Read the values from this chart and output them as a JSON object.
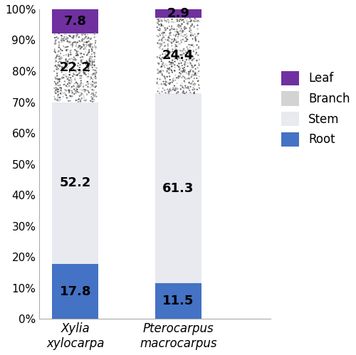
{
  "species": [
    "Xylia\nxylocarpa",
    "Pterocarpus\nmacrocarpus"
  ],
  "root": [
    17.8,
    11.5
  ],
  "stem": [
    52.2,
    61.3
  ],
  "branch": [
    22.2,
    24.4
  ],
  "leaf": [
    7.8,
    2.9
  ],
  "root_color": "#4472c4",
  "stem_color": "#e8eaf0",
  "leaf_color": "#7030a0",
  "bar_width": 0.45,
  "ylim": [
    0,
    100
  ],
  "yticks": [
    0,
    10,
    20,
    30,
    40,
    50,
    60,
    70,
    80,
    90,
    100
  ],
  "ytick_labels": [
    "0%",
    "10%",
    "20%",
    "30%",
    "40%",
    "50%",
    "60%",
    "70%",
    "80%",
    "90%",
    "100%"
  ],
  "label_fontsize": 13,
  "tick_fontsize": 11,
  "legend_fontsize": 12,
  "xlim": [
    -0.35,
    1.9
  ]
}
